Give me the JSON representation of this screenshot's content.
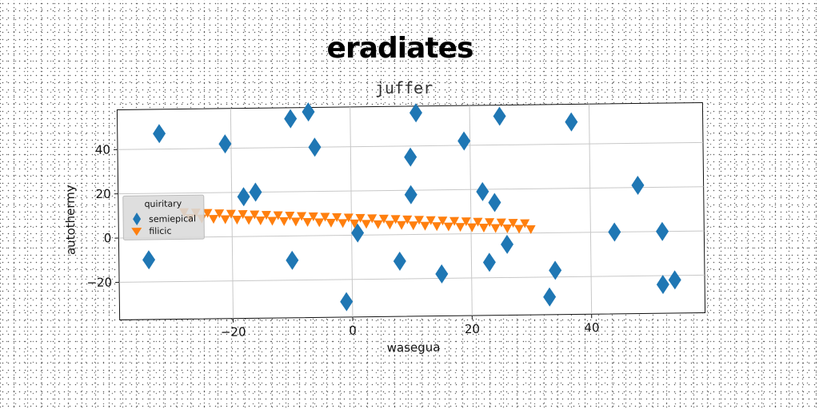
{
  "chart_data": {
    "type": "scatter",
    "title": "eradiates",
    "subtitle": "juffer",
    "xlabel": "wasegua",
    "ylabel": "autothermy",
    "xlim": [
      -39,
      59
    ],
    "ylim": [
      -37,
      58
    ],
    "xticks": [
      -20,
      0,
      20,
      40
    ],
    "yticks": [
      -20,
      0,
      20,
      40
    ],
    "xtick_labels": [
      "−20",
      "0",
      "20",
      "40"
    ],
    "ytick_labels": [
      "−20",
      "0",
      "20",
      "40"
    ],
    "grid": true,
    "legend": {
      "title": "quiritary",
      "position": "center-left"
    },
    "series": [
      {
        "name": "semiepical",
        "marker": "diamond",
        "color": "#1f77b4",
        "points": [
          [
            -34,
            -10
          ],
          [
            -32,
            47
          ],
          [
            -21,
            42
          ],
          [
            -18,
            18
          ],
          [
            -16,
            20
          ],
          [
            -10,
            53
          ],
          [
            -10,
            -11
          ],
          [
            -7,
            56
          ],
          [
            -6,
            40
          ],
          [
            -1,
            -30
          ],
          [
            1,
            1
          ],
          [
            8,
            -12
          ],
          [
            10,
            35
          ],
          [
            10,
            18
          ],
          [
            11,
            55
          ],
          [
            15,
            -18
          ],
          [
            19,
            42
          ],
          [
            22,
            19
          ],
          [
            23,
            -13
          ],
          [
            24,
            14
          ],
          [
            25,
            53
          ],
          [
            26,
            -5
          ],
          [
            33,
            -29
          ],
          [
            34,
            -17
          ],
          [
            37,
            50
          ],
          [
            44,
            0
          ],
          [
            48,
            21
          ],
          [
            52,
            0
          ],
          [
            52,
            -24
          ],
          [
            54,
            -22
          ]
        ]
      },
      {
        "name": "filicic",
        "marker": "triangle_down",
        "color": "#ff7f0e",
        "x_range": [
          -28,
          30
        ],
        "y_range": [
          10,
          3
        ],
        "count": 60
      }
    ]
  }
}
